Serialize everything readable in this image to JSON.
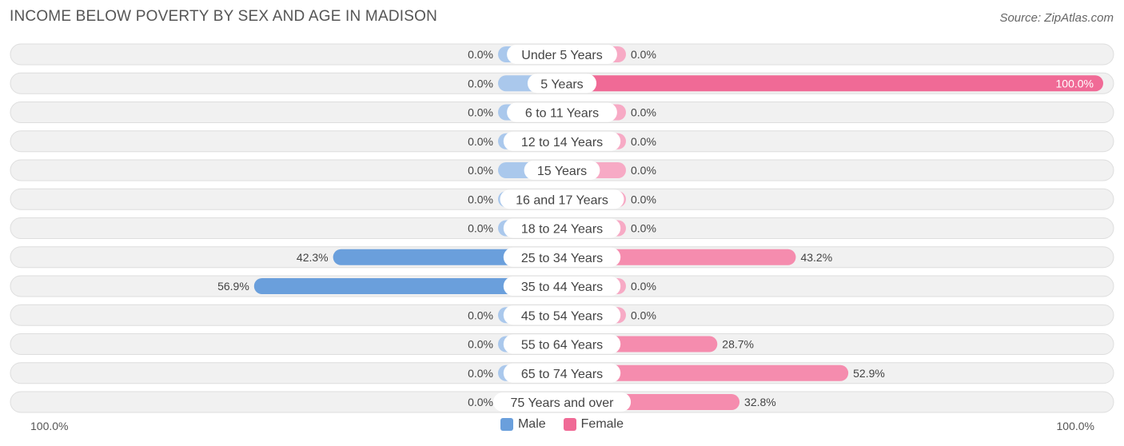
{
  "header": {
    "title": "INCOME BELOW POVERTY BY SEX AND AGE IN MADISON",
    "source": "Source: ZipAtlas.com"
  },
  "colors": {
    "male_strong": "#6a9fdc",
    "male_light": "#aac8ec",
    "female_strong": "#f06a96",
    "female_mid": "#f58cae",
    "female_light": "#f7aac5",
    "row_bg": "#f1f1f1",
    "row_border": "#dedede"
  },
  "chart_data": {
    "type": "bar",
    "orientation": "horizontal-diverging",
    "categories": [
      "Under 5 Years",
      "5 Years",
      "6 to 11 Years",
      "12 to 14 Years",
      "15 Years",
      "16 and 17 Years",
      "18 to 24 Years",
      "25 to 34 Years",
      "35 to 44 Years",
      "45 to 54 Years",
      "55 to 64 Years",
      "65 to 74 Years",
      "75 Years and over"
    ],
    "series": [
      {
        "name": "Male",
        "values": [
          0.0,
          0.0,
          0.0,
          0.0,
          0.0,
          0.0,
          0.0,
          42.3,
          56.9,
          0.0,
          0.0,
          0.0,
          0.0
        ],
        "labels": [
          "0.0%",
          "0.0%",
          "0.0%",
          "0.0%",
          "0.0%",
          "0.0%",
          "0.0%",
          "42.3%",
          "56.9%",
          "0.0%",
          "0.0%",
          "0.0%",
          "0.0%"
        ]
      },
      {
        "name": "Female",
        "values": [
          0.0,
          100.0,
          0.0,
          0.0,
          0.0,
          0.0,
          0.0,
          43.2,
          0.0,
          0.0,
          28.7,
          52.9,
          32.8
        ],
        "labels": [
          "0.0%",
          "100.0%",
          "0.0%",
          "0.0%",
          "0.0%",
          "0.0%",
          "0.0%",
          "43.2%",
          "0.0%",
          "0.0%",
          "28.7%",
          "52.9%",
          "32.8%"
        ]
      }
    ],
    "xlim": [
      -100,
      100
    ],
    "axis_left_label": "100.0%",
    "axis_right_label": "100.0%",
    "legend": {
      "position": "bottom-center",
      "items": [
        "Male",
        "Female"
      ]
    }
  }
}
